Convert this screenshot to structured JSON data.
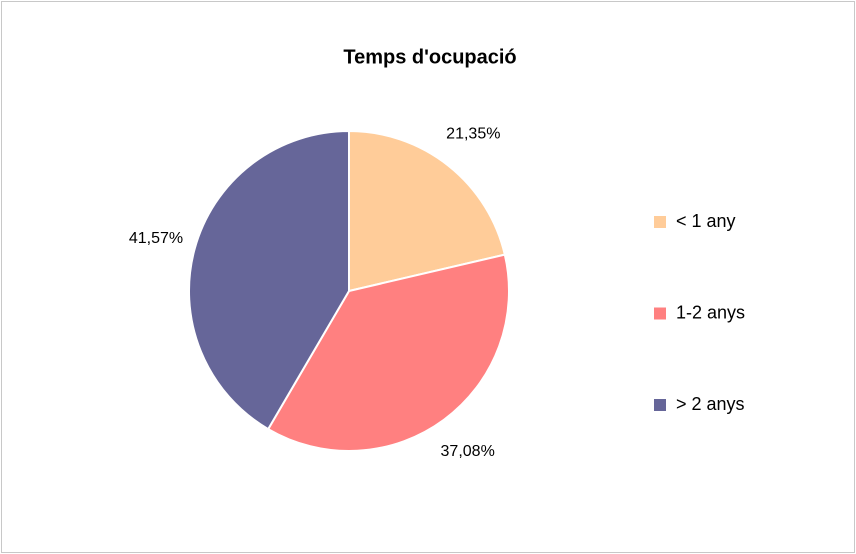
{
  "chart_data": {
    "type": "pie",
    "title": "Temps d'ocupació",
    "categories": [
      "< 1 any",
      "1-2 anys",
      "> 2 anys"
    ],
    "values": [
      21.35,
      37.08,
      41.57
    ],
    "value_labels": [
      "21,35%",
      "37,08%",
      "41,57%"
    ],
    "colors": [
      "#ffcc99",
      "#ff8080",
      "#666699"
    ]
  }
}
